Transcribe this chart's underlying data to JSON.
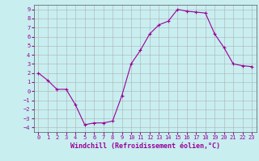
{
  "x": [
    0,
    1,
    2,
    3,
    4,
    5,
    6,
    7,
    8,
    9,
    10,
    11,
    12,
    13,
    14,
    15,
    16,
    17,
    18,
    19,
    20,
    21,
    22,
    23
  ],
  "y": [
    2.0,
    1.2,
    0.2,
    0.2,
    -1.5,
    -3.7,
    -3.5,
    -3.5,
    -3.3,
    -0.5,
    3.0,
    4.5,
    6.3,
    7.3,
    7.7,
    9.0,
    8.8,
    8.7,
    8.6,
    6.3,
    4.8,
    3.0,
    2.8,
    2.7
  ],
  "line_color": "#990099",
  "bg_color": "#c8eef0",
  "grid_color": "#b0b0b0",
  "xlabel": "Windchill (Refroidissement éolien,°C)",
  "xlim": [
    -0.5,
    23.5
  ],
  "ylim": [
    -4.5,
    9.5
  ],
  "yticks": [
    -4,
    -3,
    -2,
    -1,
    0,
    1,
    2,
    3,
    4,
    5,
    6,
    7,
    8,
    9
  ],
  "xticks": [
    0,
    1,
    2,
    3,
    4,
    5,
    6,
    7,
    8,
    9,
    10,
    11,
    12,
    13,
    14,
    15,
    16,
    17,
    18,
    19,
    20,
    21,
    22,
    23
  ],
  "tick_fontsize": 5.0,
  "xlabel_fontsize": 6.0
}
